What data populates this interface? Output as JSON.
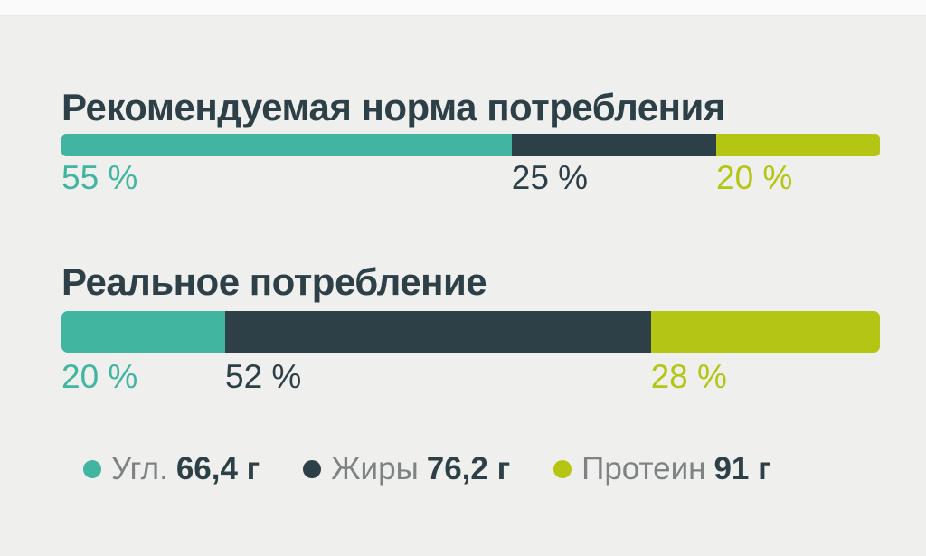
{
  "colors": {
    "carbs": "#41b5a0",
    "fats": "#2d3f47",
    "protein": "#b4c613",
    "title_text": "#2d3f47",
    "legend_label_gray": "#7e8284",
    "background": "#efefee",
    "top_strip": "#fafafa"
  },
  "chart_data": {
    "type": "bar",
    "subtype": "horizontal-stacked-percent",
    "legend_position": "bottom",
    "grid": false,
    "rows": [
      {
        "title": "Рекомендуемая норма потребления",
        "segments": [
          {
            "name": "carbs",
            "percent": 55,
            "label": "55 %"
          },
          {
            "name": "fats",
            "percent": 25,
            "label": "25 %"
          },
          {
            "name": "protein",
            "percent": 20,
            "label": "20 %"
          }
        ]
      },
      {
        "title": "Реальное потребление",
        "segments": [
          {
            "name": "carbs",
            "percent": 20,
            "label": "20 %"
          },
          {
            "name": "fats",
            "percent": 52,
            "label": "52 %"
          },
          {
            "name": "protein",
            "percent": 28,
            "label": "28 %"
          }
        ]
      }
    ],
    "legend": [
      {
        "name": "carbs",
        "label": "Угл.",
        "value": "66,4 г"
      },
      {
        "name": "fats",
        "label": "Жиры",
        "value": "76,2 г"
      },
      {
        "name": "protein",
        "label": "Протеин",
        "value": "91 г"
      }
    ]
  }
}
